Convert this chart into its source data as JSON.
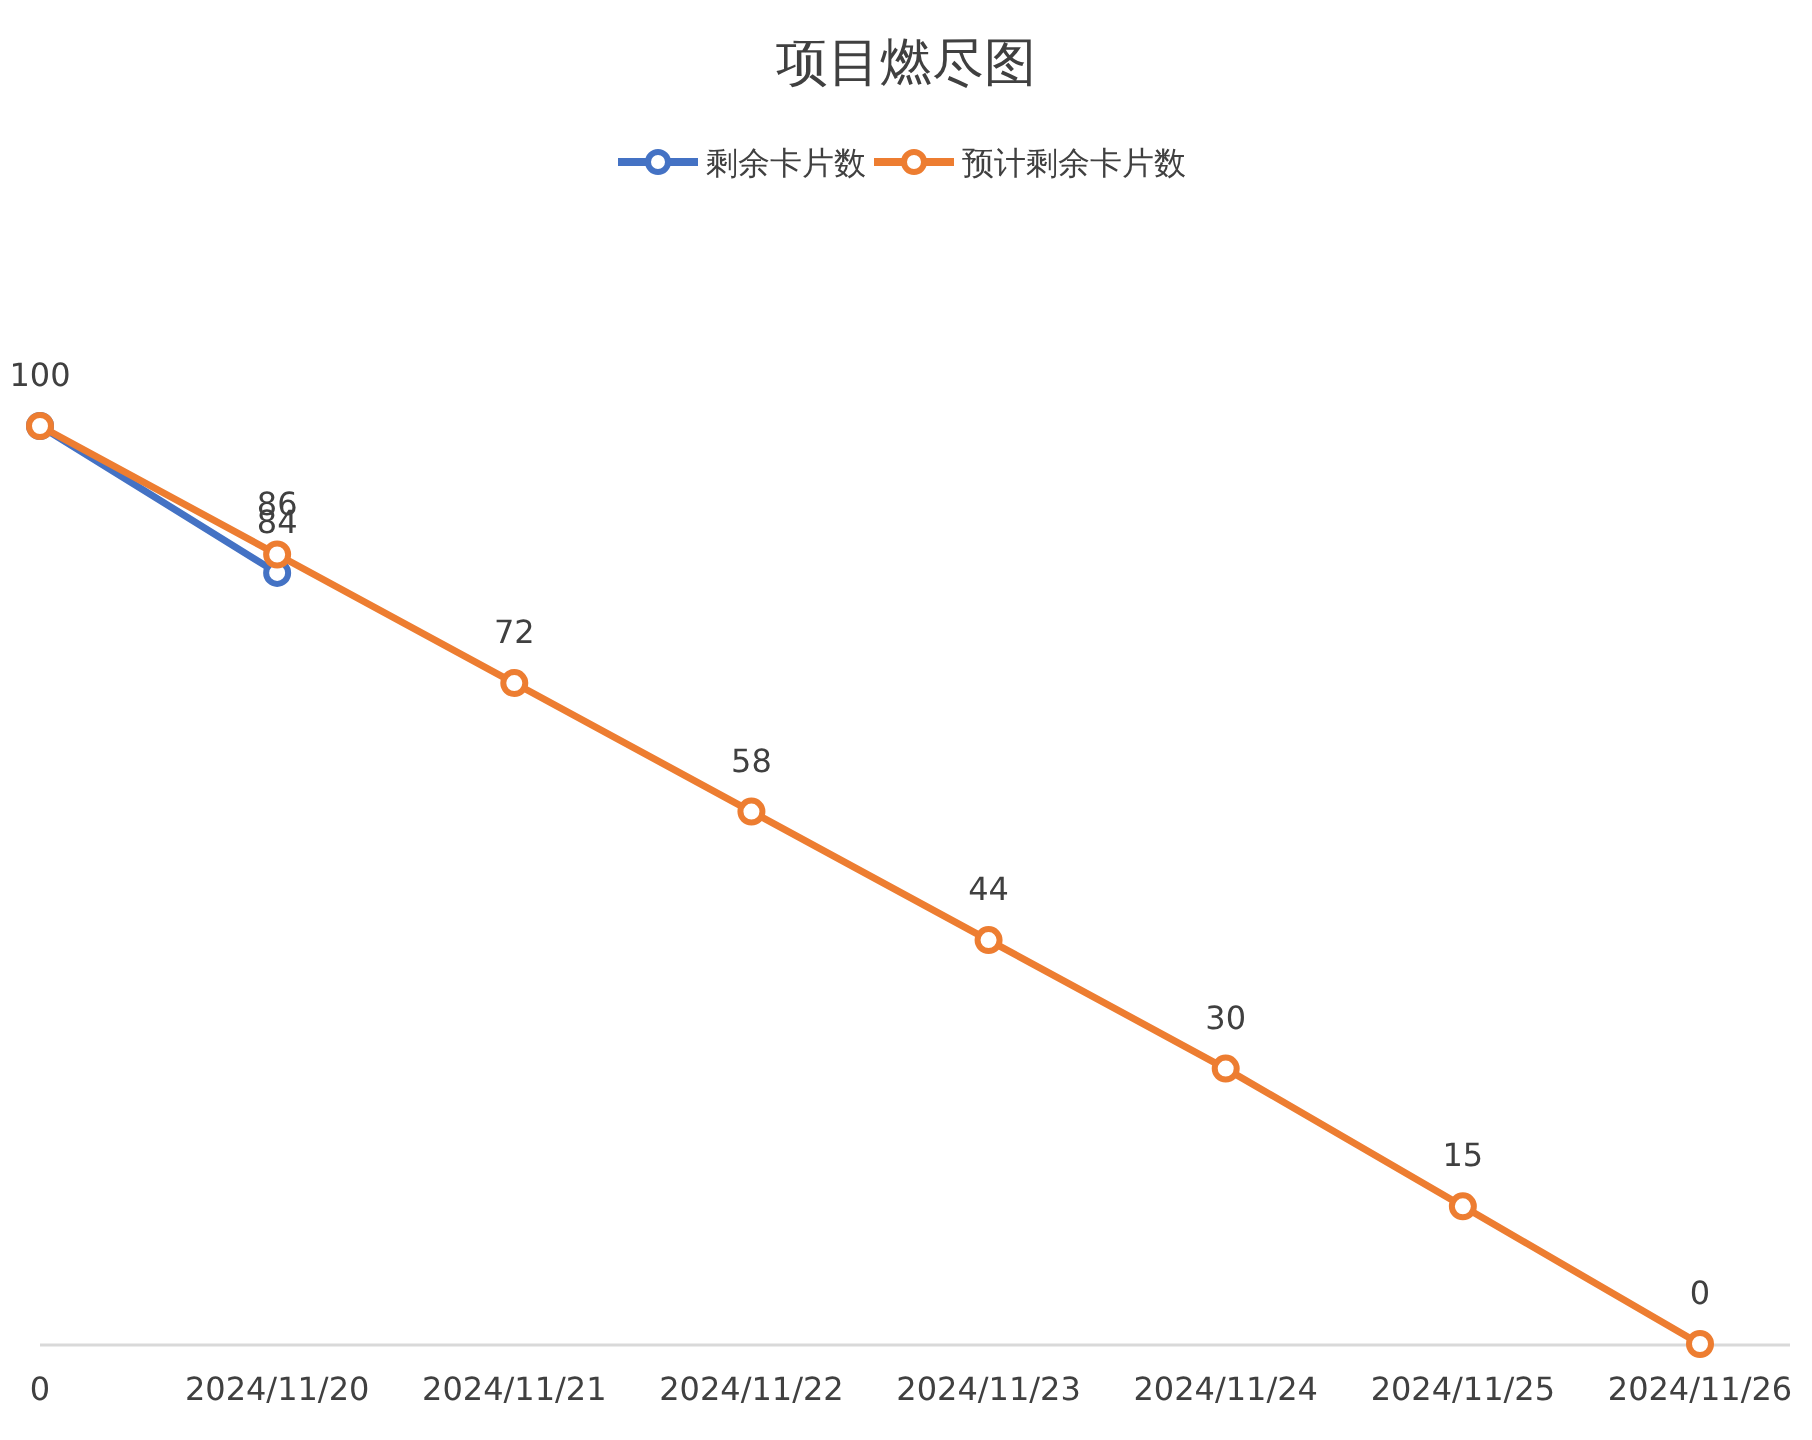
{
  "chart_data": {
    "type": "line",
    "title": "项目燃尽图",
    "categories": [
      "0",
      "2024/11/20",
      "2024/11/21",
      "2024/11/22",
      "2024/11/23",
      "2024/11/24",
      "2024/11/25",
      "2024/11/26"
    ],
    "series": [
      {
        "name": "剩余卡片数",
        "color": "#4472c4",
        "values": [
          100,
          84,
          null,
          null,
          null,
          null,
          null,
          null
        ],
        "value_labels": [
          "100",
          "84",
          null,
          null,
          null,
          null,
          null,
          null
        ]
      },
      {
        "name": "预计剩余卡片数",
        "color": "#ed7d31",
        "values": [
          100,
          86,
          72,
          58,
          44,
          30,
          15,
          0
        ],
        "value_labels": [
          null,
          "86",
          "72",
          "58",
          "44",
          "30",
          "15",
          "0"
        ]
      }
    ],
    "legend": "top",
    "marker": "circle",
    "line_style": "solid",
    "grid": false
  }
}
